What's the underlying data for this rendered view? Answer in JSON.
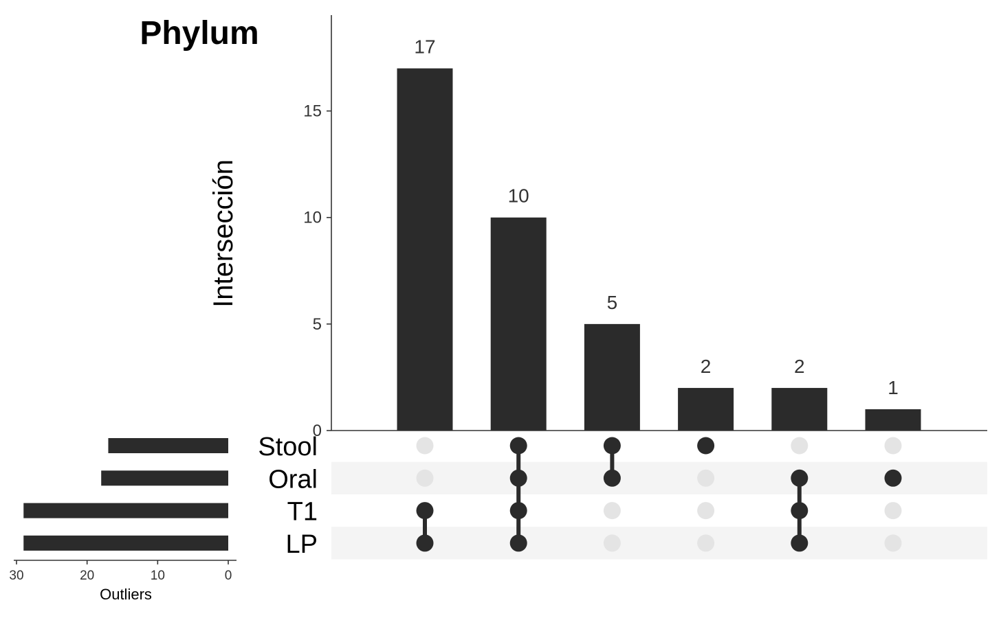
{
  "chart_data": {
    "type": "bar",
    "subtype": "upset",
    "title": "Phylum",
    "ylabel": "Intersección",
    "ylim": [
      0,
      19.5
    ],
    "yticks": [
      0,
      5,
      10,
      15
    ],
    "sets": [
      "Stool",
      "Oral",
      "T1",
      "LP"
    ],
    "intersections": [
      {
        "sets": [
          "T1",
          "LP"
        ],
        "value": 17
      },
      {
        "sets": [
          "Stool",
          "Oral",
          "T1",
          "LP"
        ],
        "value": 10
      },
      {
        "sets": [
          "Stool",
          "Oral"
        ],
        "value": 5
      },
      {
        "sets": [
          "Stool"
        ],
        "value": 2
      },
      {
        "sets": [
          "Oral",
          "T1",
          "LP"
        ],
        "value": 2
      },
      {
        "sets": [
          "Oral"
        ],
        "value": 1
      }
    ],
    "set_size": {
      "xlabel": "Outliers",
      "xlim": [
        30,
        0
      ],
      "xticks": [
        30,
        20,
        10,
        0
      ],
      "values": [
        17,
        18,
        29,
        29
      ]
    },
    "colors": {
      "bar": "#2b2b2b",
      "dot_active": "#2b2b2b",
      "dot_inactive": "#e4e4e4",
      "stripe": "#f4f4f4"
    },
    "grid": false,
    "legend": "none"
  }
}
